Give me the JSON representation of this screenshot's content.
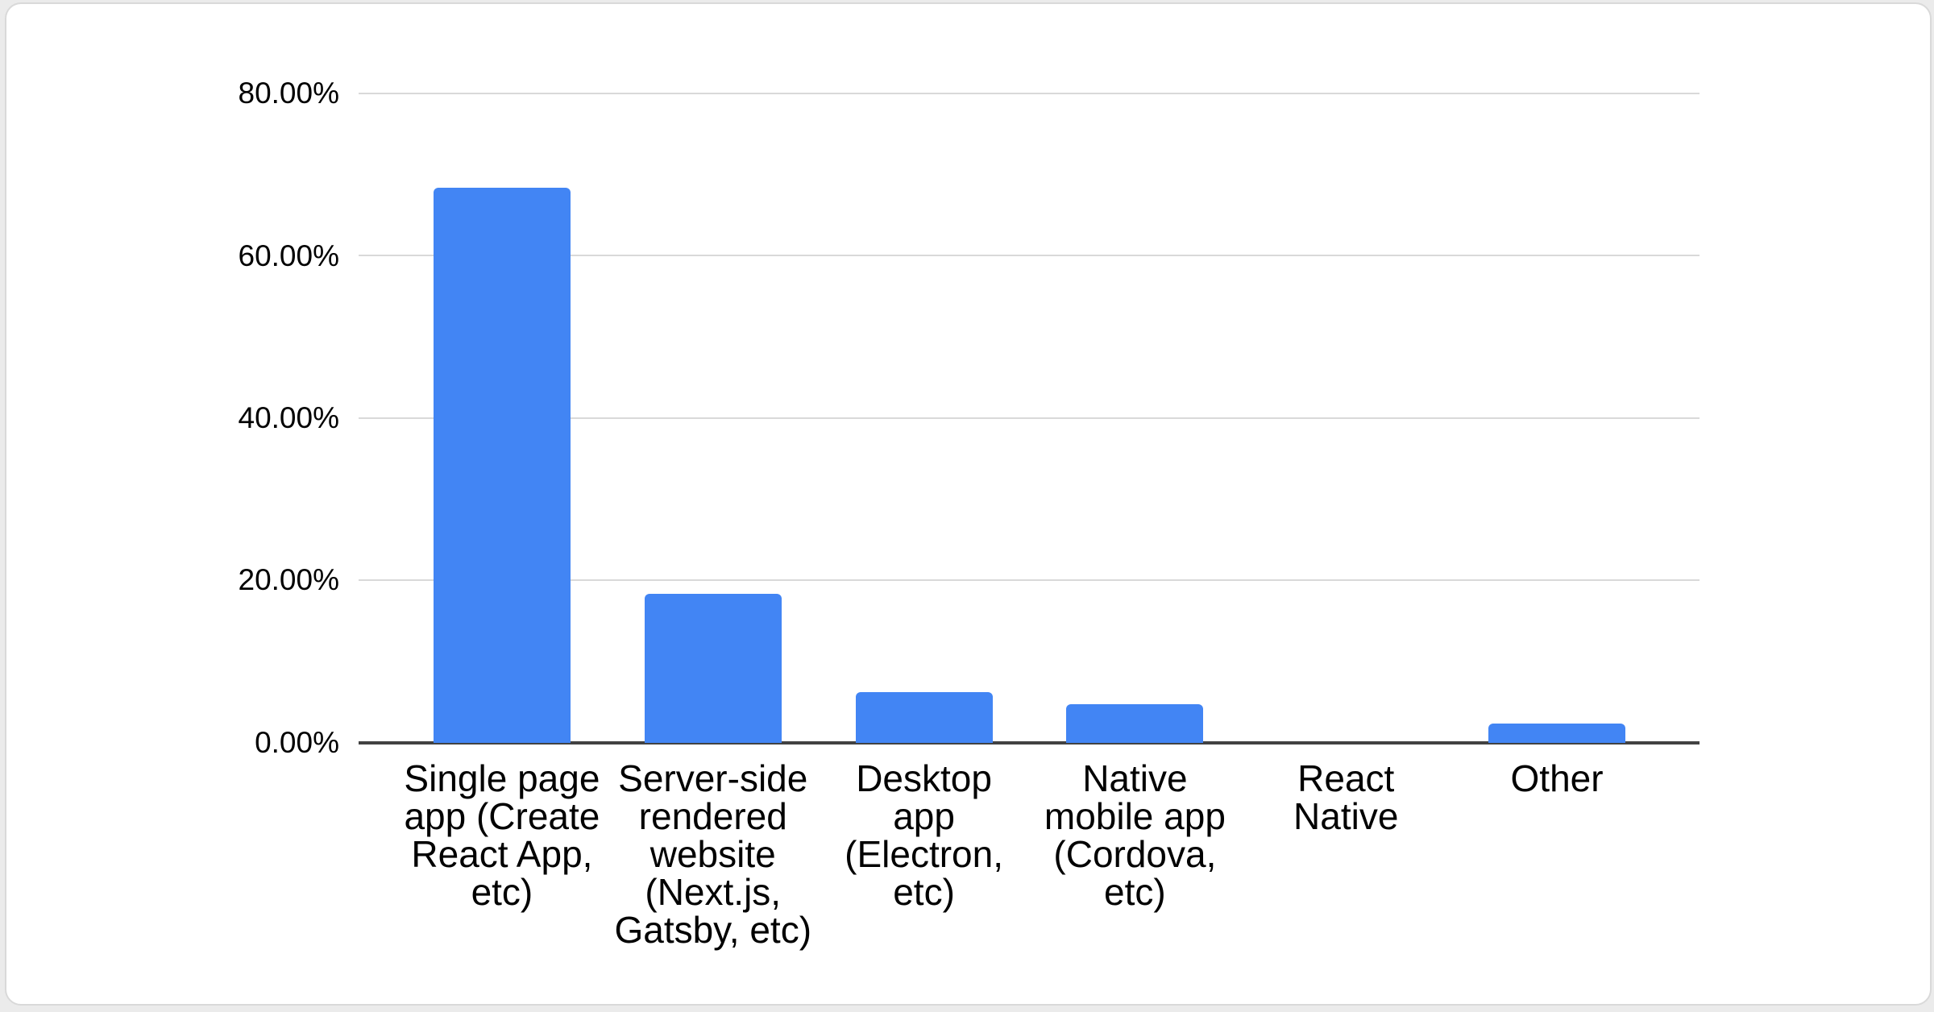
{
  "chart_data": {
    "type": "bar",
    "categories": [
      "Single page app (Create React App, etc)",
      "Server-side rendered website (Next.js, Gatsby, etc)",
      "Desktop app (Electron, etc)",
      "Native mobile app (Cordova, etc)",
      "React Native",
      "Other"
    ],
    "values": [
      68.4,
      18.4,
      6.3,
      4.8,
      0,
      2.4
    ],
    "unit": "percent",
    "ylim": [
      0,
      80
    ],
    "y_ticks": [
      "80.00%",
      "60.00%",
      "40.00%",
      "20.00%",
      "0.00%"
    ],
    "x_tick_labels_wrapped": [
      "Single page\napp (Create\nReact App,\netc)",
      "Server-side\nrendered\nwebsite\n(Next.js,\nGatsby, etc)",
      "Desktop\napp\n(Electron,\netc)",
      "Native\nmobile app\n(Cordova,\netc)",
      "React\nNative",
      "Other"
    ],
    "grid": "horizontal gridlines every 20%",
    "legend": "none",
    "bar_color": "#4285f4"
  },
  "colors": {
    "bar": "#4285f4",
    "gridline": "#d9d9d9",
    "axis_line": "#424242",
    "text": "#000000",
    "card_border": "#d9d9d9",
    "card_background": "#ffffff",
    "page_background": "#ebebeb"
  }
}
